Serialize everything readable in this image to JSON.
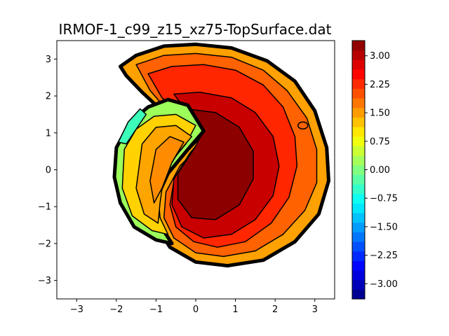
{
  "chart_data": {
    "type": "contourf",
    "title": "IRMOF-1_c99_z15_xz75-TopSurface.dat",
    "xlabel": "",
    "ylabel": "",
    "xlim": [
      -3.5,
      3.5
    ],
    "ylim": [
      -3.5,
      3.5
    ],
    "x_ticks": [
      -3,
      -2,
      -1,
      0,
      1,
      2,
      3
    ],
    "y_ticks": [
      -3,
      -2,
      -1,
      0,
      1,
      2,
      3
    ],
    "x_tick_labels": [
      "−3",
      "−2",
      "−1",
      "0",
      "1",
      "2",
      "3"
    ],
    "y_tick_labels": [
      "−3",
      "−2",
      "−1",
      "0",
      "1",
      "2",
      "3"
    ],
    "grid": false,
    "colormap": "jet",
    "colorbar": {
      "range": [
        -3.4,
        3.4
      ],
      "ticks": [
        3.0,
        2.25,
        1.5,
        0.75,
        0.0,
        -0.75,
        -1.5,
        -2.25,
        -3.0
      ],
      "tick_labels": [
        "3.00",
        "2.25",
        "1.50",
        "0.75",
        "0.00",
        "−0.75",
        "−1.50",
        "−2.25",
        "−3.00"
      ],
      "levels": 27
    },
    "regions": [
      {
        "name": "outer-crescent",
        "rings": [
          {
            "level": 1.6,
            "color": "#ffa100",
            "points": [
              [
                -1.9,
                2.8
              ],
              [
                -1.5,
                3.1
              ],
              [
                -0.8,
                3.35
              ],
              [
                0,
                3.4
              ],
              [
                0.9,
                3.3
              ],
              [
                1.8,
                2.95
              ],
              [
                2.5,
                2.4
              ],
              [
                3.0,
                1.6
              ],
              [
                3.3,
                0.6
              ],
              [
                3.35,
                -0.3
              ],
              [
                3.1,
                -1.2
              ],
              [
                2.5,
                -1.95
              ],
              [
                1.7,
                -2.45
              ],
              [
                0.8,
                -2.6
              ],
              [
                0.0,
                -2.5
              ],
              [
                -0.65,
                -2.1
              ],
              [
                -1.0,
                -1.5
              ],
              [
                -1.0,
                -0.8
              ],
              [
                -0.7,
                -0.1
              ],
              [
                -0.2,
                0.55
              ],
              [
                0.2,
                1.0
              ],
              [
                -0.1,
                1.4
              ],
              [
                -0.5,
                1.6
              ],
              [
                -0.95,
                1.7
              ],
              [
                -1.35,
                2.1
              ],
              [
                -1.75,
                2.55
              ]
            ]
          },
          {
            "level": 2.1,
            "color": "#ff6200",
            "points": [
              [
                -1.5,
                2.85
              ],
              [
                -0.8,
                3.1
              ],
              [
                0,
                3.15
              ],
              [
                0.9,
                3.05
              ],
              [
                1.7,
                2.7
              ],
              [
                2.3,
                2.15
              ],
              [
                2.8,
                1.4
              ],
              [
                3.05,
                0.55
              ],
              [
                3.05,
                -0.35
              ],
              [
                2.75,
                -1.1
              ],
              [
                2.2,
                -1.75
              ],
              [
                1.5,
                -2.2
              ],
              [
                0.7,
                -2.35
              ],
              [
                0.0,
                -2.25
              ],
              [
                -0.55,
                -1.85
              ],
              [
                -0.8,
                -1.3
              ],
              [
                -0.75,
                -0.6
              ],
              [
                -0.4,
                0.1
              ],
              [
                0.05,
                0.6
              ],
              [
                0.15,
                1.05
              ],
              [
                -0.25,
                1.4
              ],
              [
                -0.75,
                1.65
              ],
              [
                -1.15,
                2.15
              ]
            ]
          },
          {
            "level": 2.6,
            "color": "#ff2600",
            "points": [
              [
                -1.2,
                2.6
              ],
              [
                -0.6,
                2.8
              ],
              [
                0.2,
                2.85
              ],
              [
                1.0,
                2.7
              ],
              [
                1.7,
                2.3
              ],
              [
                2.2,
                1.7
              ],
              [
                2.5,
                0.9
              ],
              [
                2.55,
                0.1
              ],
              [
                2.35,
                -0.75
              ],
              [
                1.9,
                -1.45
              ],
              [
                1.25,
                -1.95
              ],
              [
                0.55,
                -2.1
              ],
              [
                -0.05,
                -1.95
              ],
              [
                -0.5,
                -1.55
              ],
              [
                -0.65,
                -0.95
              ],
              [
                -0.55,
                -0.3
              ],
              [
                -0.2,
                0.35
              ],
              [
                0.15,
                0.85
              ],
              [
                0.05,
                1.25
              ],
              [
                -0.45,
                1.55
              ],
              [
                -0.85,
                1.95
              ]
            ]
          },
          {
            "level": 3.0,
            "color": "#c80000",
            "points": [
              [
                -0.55,
                2.05
              ],
              [
                0.1,
                2.1
              ],
              [
                0.9,
                1.95
              ],
              [
                1.5,
                1.55
              ],
              [
                1.95,
                0.9
              ],
              [
                2.1,
                0.1
              ],
              [
                1.95,
                -0.7
              ],
              [
                1.5,
                -1.35
              ],
              [
                0.9,
                -1.75
              ],
              [
                0.2,
                -1.85
              ],
              [
                -0.35,
                -1.55
              ],
              [
                -0.6,
                -0.95
              ],
              [
                -0.55,
                -0.25
              ],
              [
                -0.15,
                0.45
              ],
              [
                0.2,
                0.9
              ],
              [
                0.15,
                1.25
              ],
              [
                -0.25,
                1.6
              ]
            ]
          },
          {
            "level": 3.3,
            "color": "#8c0000",
            "points": [
              [
                -0.25,
                1.65
              ],
              [
                0.5,
                1.55
              ],
              [
                1.1,
                1.15
              ],
              [
                1.45,
                0.5
              ],
              [
                1.45,
                -0.25
              ],
              [
                1.1,
                -0.95
              ],
              [
                0.5,
                -1.35
              ],
              [
                -0.1,
                -1.3
              ],
              [
                -0.45,
                -0.8
              ],
              [
                -0.45,
                -0.1
              ],
              [
                -0.05,
                0.55
              ],
              [
                0.15,
                0.95
              ],
              [
                -0.05,
                1.3
              ]
            ]
          }
        ]
      },
      {
        "name": "inner-lobe",
        "rings": [
          {
            "level": 0.5,
            "color": "#9cff5a",
            "points": [
              [
                -2.0,
                0.6
              ],
              [
                -1.65,
                1.3
              ],
              [
                -1.2,
                1.7
              ],
              [
                -0.7,
                1.9
              ],
              [
                -0.2,
                1.75
              ],
              [
                0.2,
                1.05
              ],
              [
                -0.2,
                0.55
              ],
              [
                -0.7,
                -0.1
              ],
              [
                -1.0,
                -0.8
              ],
              [
                -0.9,
                -1.5
              ],
              [
                -0.6,
                -2.0
              ],
              [
                -1.0,
                -1.9
              ],
              [
                -1.55,
                -1.55
              ],
              [
                -1.9,
                -0.9
              ],
              [
                -2.05,
                -0.2
              ]
            ]
          },
          {
            "level": 1.1,
            "color": "#ffd200",
            "points": [
              [
                -1.8,
                0.55
              ],
              [
                -1.5,
                1.1
              ],
              [
                -1.05,
                1.45
              ],
              [
                -0.5,
                1.5
              ],
              [
                0.0,
                1.2
              ],
              [
                -0.25,
                0.7
              ],
              [
                -0.7,
                0.1
              ],
              [
                -0.95,
                -0.6
              ],
              [
                -0.9,
                -1.3
              ],
              [
                -0.7,
                -1.75
              ],
              [
                -1.1,
                -1.65
              ],
              [
                -1.6,
                -1.25
              ],
              [
                -1.85,
                -0.5
              ]
            ]
          },
          {
            "level": 1.5,
            "color": "#ffa500",
            "points": [
              [
                -1.35,
                0.7
              ],
              [
                -1.0,
                1.15
              ],
              [
                -0.5,
                1.2
              ],
              [
                -0.1,
                0.9
              ],
              [
                -0.45,
                0.45
              ],
              [
                -0.8,
                -0.15
              ],
              [
                -0.9,
                -0.9
              ],
              [
                -0.95,
                -1.45
              ],
              [
                -1.3,
                -1.2
              ],
              [
                -1.5,
                -0.5
              ]
            ]
          },
          {
            "level": 1.8,
            "color": "#ff8c00",
            "points": [
              [
                -1.0,
                0.55
              ],
              [
                -0.65,
                0.9
              ],
              [
                -0.3,
                0.75
              ],
              [
                -0.6,
                0.2
              ],
              [
                -0.85,
                -0.5
              ],
              [
                -1.05,
                -0.9
              ],
              [
                -1.15,
                -0.3
              ]
            ]
          }
        ]
      },
      {
        "name": "left-fringe",
        "rings": [
          {
            "level": -0.3,
            "color": "#3cffba",
            "points": [
              [
                -1.95,
                0.75
              ],
              [
                -1.7,
                1.3
              ],
              [
                -1.4,
                1.65
              ],
              [
                -1.25,
                1.5
              ],
              [
                -1.5,
                1.1
              ],
              [
                -1.75,
                0.7
              ]
            ]
          }
        ]
      }
    ],
    "annotations": [
      {
        "type": "small-loop",
        "x": 2.7,
        "y": 1.2,
        "level": 2.1
      }
    ]
  }
}
